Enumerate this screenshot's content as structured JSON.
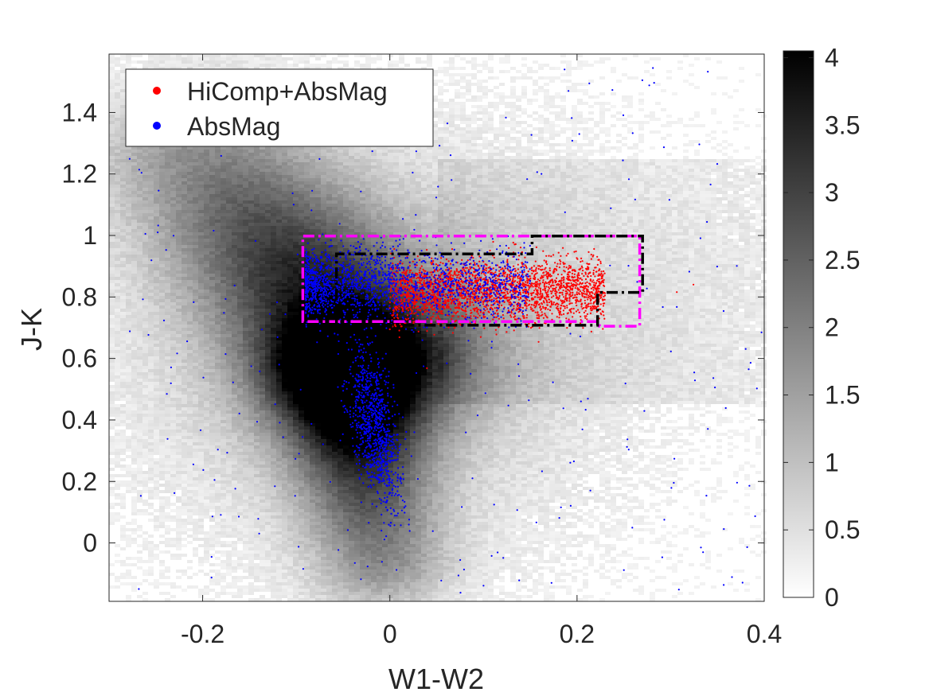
{
  "chart_data": {
    "type": "scatter",
    "xlabel": "W1-W2",
    "ylabel": "J-K",
    "xlim": [
      -0.3,
      0.4
    ],
    "ylim": [
      -0.19,
      1.59
    ],
    "xticks": [
      -0.2,
      0,
      0.2,
      0.4
    ],
    "xtick_labels": [
      "-0.2",
      "0",
      "0.2",
      "0.4"
    ],
    "yticks": [
      0,
      0.2,
      0.4,
      0.6,
      0.8,
      1,
      1.2,
      1.4
    ],
    "ytick_labels": [
      "0",
      "0.2",
      "0.4",
      "0.6",
      "0.8",
      "1",
      "1.2",
      "1.4"
    ],
    "grid": false,
    "legend_position": "top-left",
    "background_density": {
      "description_of_ridges": [
        {
          "from": [
            -0.2,
            1.25
          ],
          "to": [
            -0.03,
            0.62
          ]
        },
        {
          "from": [
            -0.05,
            0.55
          ],
          "to": [
            -0.01,
            -0.05
          ]
        }
      ],
      "colormap": "gray-reversed"
    },
    "colorbar": {
      "min": 0,
      "max": 4.05,
      "ticks": [
        0,
        0.5,
        1,
        1.5,
        2,
        2.5,
        3,
        3.5,
        4
      ],
      "tick_labels": [
        "0",
        "0.5",
        "1",
        "1.5",
        "2",
        "2.5",
        "3",
        "3.5",
        "4"
      ]
    },
    "series": [
      {
        "name": "HiComp+AbsMag",
        "color": "#ff0000",
        "clusters": [
          {
            "x_range": [
              0.0,
              0.23
            ],
            "y_center": 0.82,
            "y_spread": 0.05,
            "points": 2600
          }
        ]
      },
      {
        "name": "AbsMag",
        "color": "#0000ff",
        "clusters": [
          {
            "x_range": [
              -0.09,
              0.15
            ],
            "y_center": 0.84,
            "y_spread": 0.06,
            "points": 1800
          },
          {
            "x_range": [
              -0.06,
              0.0
            ],
            "y_center": 0.37,
            "y_spread": 0.13,
            "points": 900
          }
        ]
      }
    ],
    "regions": [
      {
        "color": "#ff00ff",
        "style": "dash-dot",
        "vertices": [
          [
            -0.093,
            0.72
          ],
          [
            -0.093,
            0.998
          ],
          [
            0.267,
            0.998
          ],
          [
            0.267,
            0.705
          ],
          [
            0.224,
            0.705
          ],
          [
            0.224,
            0.72
          ]
        ]
      },
      {
        "color": "#000000",
        "style": "dash-dot",
        "vertices": [
          [
            -0.057,
            0.72
          ],
          [
            -0.057,
            0.94
          ],
          [
            0.152,
            0.94
          ],
          [
            0.152,
            0.998
          ],
          [
            0.27,
            0.998
          ],
          [
            0.27,
            0.815
          ],
          [
            0.222,
            0.815
          ],
          [
            0.222,
            0.708
          ],
          [
            -0.057,
            0.708
          ]
        ]
      }
    ]
  }
}
